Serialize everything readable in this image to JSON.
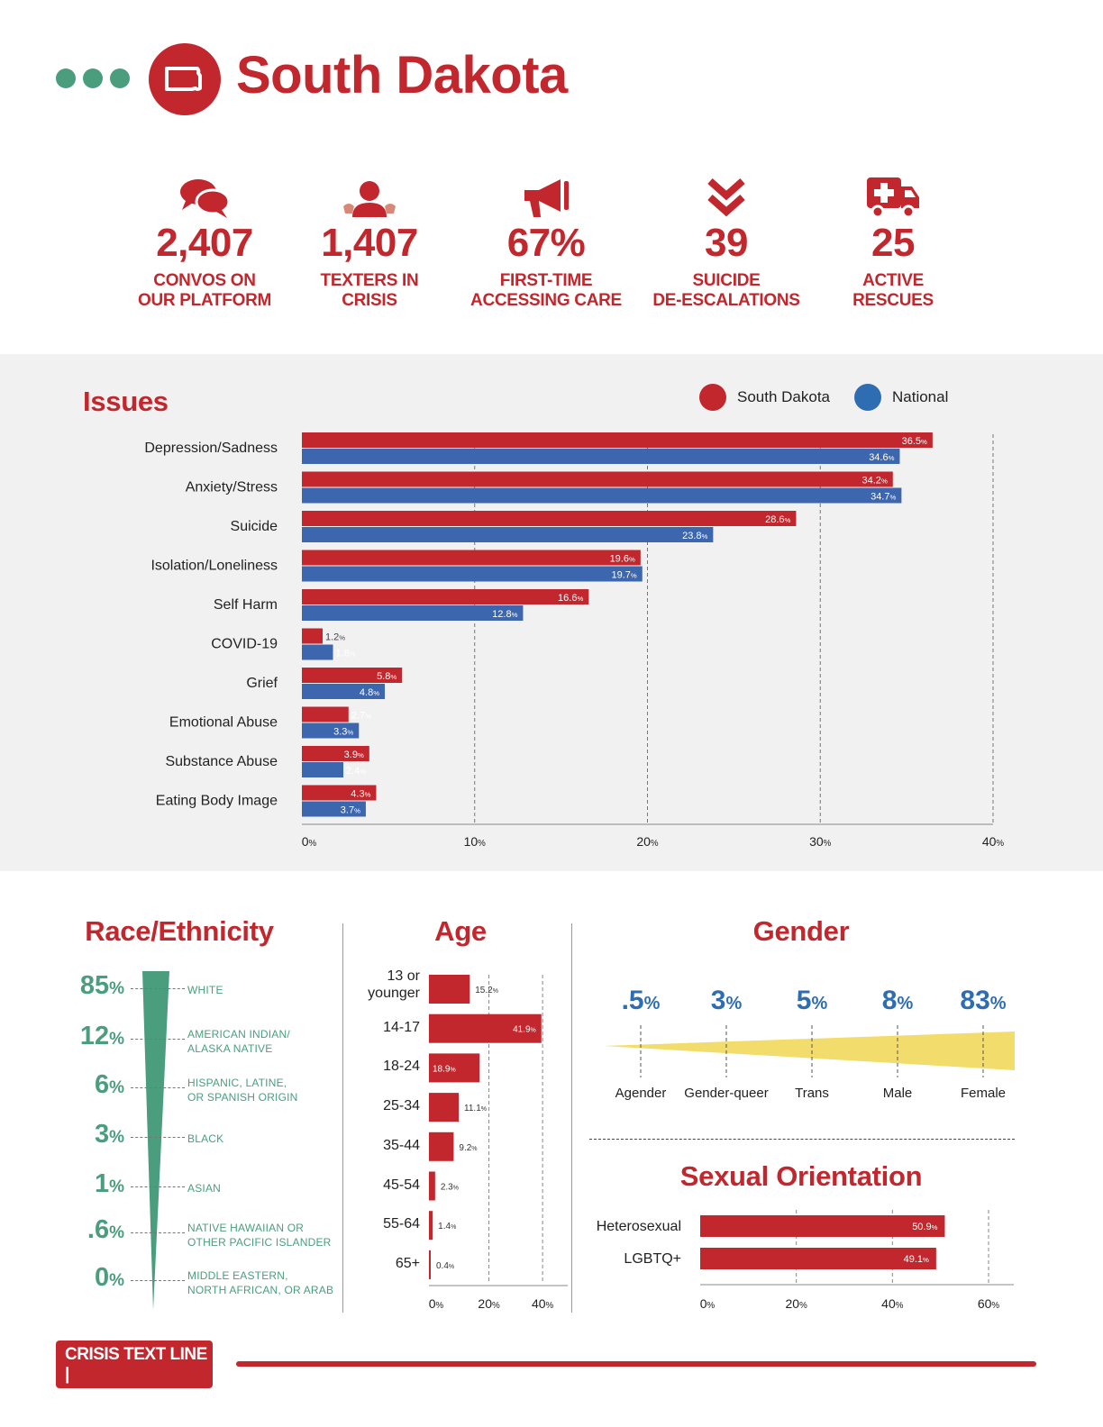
{
  "header": {
    "title": "South Dakota",
    "state_icon": "south-dakota-outline-icon"
  },
  "stats": [
    {
      "icon": "chat-bubbles-icon",
      "value": "2,407",
      "label1": "CONVOS ON",
      "label2": "OUR PLATFORM"
    },
    {
      "icon": "person-icon",
      "value": "1,407",
      "label1": "TEXTERS IN",
      "label2": "CRISIS"
    },
    {
      "icon": "megaphone-icon",
      "value": "67%",
      "label1": "FIRST-TIME",
      "label2": "ACCESSING CARE"
    },
    {
      "icon": "double-chevron-down-icon",
      "value": "39",
      "label1": "SUICIDE",
      "label2": "DE-ESCALATIONS"
    },
    {
      "icon": "ambulance-icon",
      "value": "25",
      "label1": "ACTIVE",
      "label2": "RESCUES"
    }
  ],
  "colors": {
    "red": "#c1272d",
    "blue": "#3c66ad",
    "green": "#4a9e7e",
    "yellow": "#f2dc6b"
  },
  "sections": {
    "issues": "Issues",
    "race": "Race/Ethnicity",
    "age": "Age",
    "gender": "Gender",
    "orientation": "Sexual Orientation"
  },
  "chart_data": [
    {
      "id": "issues",
      "type": "bar",
      "orientation": "horizontal",
      "title": "Issues",
      "categories": [
        "Depression/Sadness",
        "Anxiety/Stress",
        "Suicide",
        "Isolation/Loneliness",
        "Self Harm",
        "COVID-19",
        "Grief",
        "Emotional Abuse",
        "Substance Abuse",
        "Eating Body Image"
      ],
      "series": [
        {
          "name": "South Dakota",
          "values": [
            36.5,
            34.2,
            28.6,
            19.6,
            16.6,
            1.2,
            5.8,
            2.7,
            3.9,
            4.3
          ]
        },
        {
          "name": "National",
          "values": [
            34.6,
            34.7,
            23.8,
            19.7,
            12.8,
            1.8,
            4.8,
            3.3,
            2.4,
            3.7
          ]
        }
      ],
      "xticks": [
        0,
        10,
        20,
        30,
        40
      ],
      "xlim": [
        0,
        40
      ],
      "unit": "%",
      "legend": "top-right",
      "grid": "vertical dashed"
    },
    {
      "id": "race",
      "type": "table",
      "title": "Race/Ethnicity",
      "rows": [
        {
          "value": "85",
          "unit": "%",
          "label1": "WHITE",
          "label2": ""
        },
        {
          "value": "12",
          "unit": "%",
          "label1": "AMERICAN INDIAN/",
          "label2": "ALASKA NATIVE"
        },
        {
          "value": "6",
          "unit": "%",
          "label1": "HISPANIC, LATINE,",
          "label2": "OR SPANISH ORIGIN"
        },
        {
          "value": "3",
          "unit": "%",
          "label1": "BLACK",
          "label2": ""
        },
        {
          "value": "1",
          "unit": "%",
          "label1": "ASIAN",
          "label2": ""
        },
        {
          "value": ".6",
          "unit": "%",
          "label1": "NATIVE HAWAIIAN OR",
          "label2": "OTHER PACIFIC ISLANDER"
        },
        {
          "value": "0",
          "unit": "%",
          "label1": "MIDDLE EASTERN,",
          "label2": "NORTH AFRICAN, OR ARAB"
        }
      ]
    },
    {
      "id": "age",
      "type": "bar",
      "orientation": "horizontal",
      "title": "Age",
      "categories": [
        "13 or younger",
        "14-17",
        "18-24",
        "25-34",
        "35-44",
        "45-54",
        "55-64",
        "65+"
      ],
      "category_lines": [
        [
          "13 or",
          "younger"
        ],
        [
          "14-17"
        ],
        [
          "18-24"
        ],
        [
          "25-34"
        ],
        [
          "35-44"
        ],
        [
          "45-54"
        ],
        [
          "55-64"
        ],
        [
          "65+"
        ]
      ],
      "values": [
        15.2,
        41.9,
        18.9,
        11.1,
        9.2,
        2.3,
        1.4,
        0.4
      ],
      "xticks": [
        0,
        20,
        40
      ],
      "xlim": [
        0,
        45
      ],
      "unit": "%"
    },
    {
      "id": "gender",
      "type": "area",
      "title": "Gender",
      "categories": [
        "Agender",
        "Gender-queer",
        "Trans",
        "Male",
        "Female"
      ],
      "values": [
        ".5",
        "3",
        "5",
        "8",
        "83"
      ],
      "unit": "%"
    },
    {
      "id": "orientation",
      "type": "bar",
      "orientation": "horizontal",
      "title": "Sexual Orientation",
      "categories": [
        "Heterosexual",
        "LGBTQ+"
      ],
      "values": [
        50.9,
        49.1
      ],
      "xticks": [
        0,
        20,
        40,
        60
      ],
      "xlim": [
        0,
        65
      ],
      "unit": "%"
    }
  ],
  "footer": {
    "logo_text": "CRISIS TEXT LINE |"
  }
}
